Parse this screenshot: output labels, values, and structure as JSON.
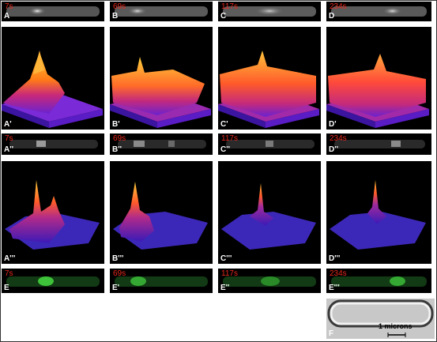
{
  "rows": {
    "gray": {
      "A": {
        "time": "7s",
        "label": "A"
      },
      "B": {
        "time": "69s",
        "label": "B"
      },
      "C": {
        "time": "117s",
        "label": "C"
      },
      "D": {
        "time": "234s",
        "label": "D"
      }
    },
    "surf1": {
      "A": {
        "label": "A'"
      },
      "B": {
        "label": "B'"
      },
      "C": {
        "label": "C'"
      },
      "D": {
        "label": "D'"
      }
    },
    "gray2": {
      "A": {
        "time": "7s",
        "label": "A''"
      },
      "B": {
        "time": "69s",
        "label": "B''"
      },
      "C": {
        "time": "117s",
        "label": "C''"
      },
      "D": {
        "time": "234s",
        "label": "D''"
      }
    },
    "surf2": {
      "A": {
        "label": "A'''"
      },
      "B": {
        "label": "B'''"
      },
      "C": {
        "label": "C'''"
      },
      "D": {
        "label": "D'''"
      }
    },
    "green": {
      "A": {
        "time": "7s",
        "label": "E"
      },
      "B": {
        "time": "69s",
        "label": "E'"
      },
      "C": {
        "time": "117s",
        "label": "E''"
      },
      "D": {
        "time": "234s",
        "label": "E'''"
      }
    }
  },
  "panel_f": {
    "label": "F",
    "scale": "1 microns"
  },
  "colors": {
    "timestamp": "#e8281c",
    "label": "#ffffff",
    "green": "#3ec23a"
  }
}
